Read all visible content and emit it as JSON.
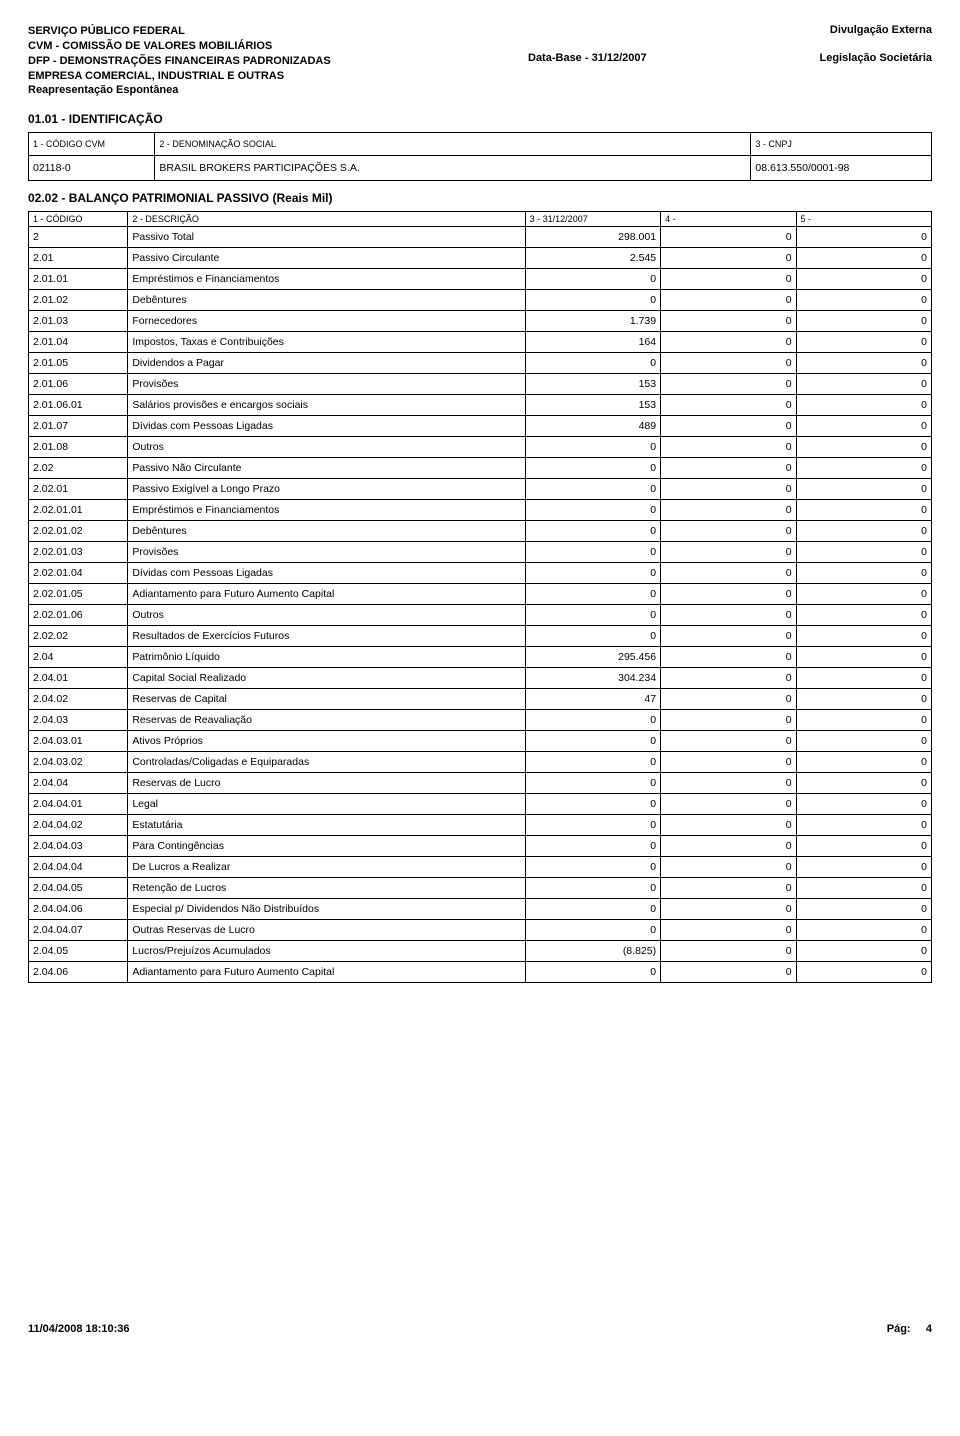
{
  "header": {
    "l1": "SERVIÇO PÚBLICO FEDERAL",
    "l2": "CVM - COMISSÃO DE VALORES MOBILIÁRIOS",
    "l3": "DFP - DEMONSTRAÇÕES FINANCEIRAS PADRONIZADAS",
    "l4": "EMPRESA COMERCIAL, INDUSTRIAL E OUTRAS",
    "l5": "Reapresentação Espontânea",
    "r1": "Divulgação Externa",
    "r2m": "Data-Base - 31/12/2007",
    "r2r": "Legislação Societária"
  },
  "ident": {
    "title": "01.01 - IDENTIFICAÇÃO",
    "labels": {
      "c1": "1 - CÓDIGO CVM",
      "c2": "2 - DENOMINAÇÃO SOCIAL",
      "c3": "3 - CNPJ"
    },
    "values": {
      "c1": "02118-0",
      "c2": "BRASIL BROKERS PARTICIPAÇÕES S.A.",
      "c3": "08.613.550/0001-98"
    }
  },
  "balance": {
    "title": "02.02 - BALANÇO PATRIMONIAL PASSIVO (Reais Mil)",
    "head": {
      "c1": "1 - CÓDIGO",
      "c2": "2 - DESCRIÇÃO",
      "c3": "3 - 31/12/2007",
      "c4": "4 -",
      "c5": "5 -"
    },
    "rows": [
      {
        "c": "2",
        "d": "Passivo Total",
        "v1": "298.001",
        "v2": "0",
        "v3": "0"
      },
      {
        "c": "2.01",
        "d": "Passivo Circulante",
        "v1": "2.545",
        "v2": "0",
        "v3": "0"
      },
      {
        "c": "2.01.01",
        "d": "Empréstimos e Financiamentos",
        "v1": "0",
        "v2": "0",
        "v3": "0"
      },
      {
        "c": "2.01.02",
        "d": "Debêntures",
        "v1": "0",
        "v2": "0",
        "v3": "0"
      },
      {
        "c": "2.01.03",
        "d": "Fornecedores",
        "v1": "1.739",
        "v2": "0",
        "v3": "0"
      },
      {
        "c": "2.01.04",
        "d": "Impostos, Taxas e Contribuições",
        "v1": "164",
        "v2": "0",
        "v3": "0"
      },
      {
        "c": "2.01.05",
        "d": "Dividendos a Pagar",
        "v1": "0",
        "v2": "0",
        "v3": "0"
      },
      {
        "c": "2.01.06",
        "d": "Provisões",
        "v1": "153",
        "v2": "0",
        "v3": "0"
      },
      {
        "c": "2.01.06.01",
        "d": "Salários provisões e encargos sociais",
        "v1": "153",
        "v2": "0",
        "v3": "0"
      },
      {
        "c": "2.01.07",
        "d": "Dívidas com Pessoas Ligadas",
        "v1": "489",
        "v2": "0",
        "v3": "0"
      },
      {
        "c": "2.01.08",
        "d": "Outros",
        "v1": "0",
        "v2": "0",
        "v3": "0"
      },
      {
        "c": "2.02",
        "d": "Passivo Não Circulante",
        "v1": "0",
        "v2": "0",
        "v3": "0"
      },
      {
        "c": "2.02.01",
        "d": "Passivo Exigível a Longo Prazo",
        "v1": "0",
        "v2": "0",
        "v3": "0"
      },
      {
        "c": "2.02.01.01",
        "d": "Empréstimos e Financiamentos",
        "v1": "0",
        "v2": "0",
        "v3": "0"
      },
      {
        "c": "2.02.01.02",
        "d": "Debêntures",
        "v1": "0",
        "v2": "0",
        "v3": "0"
      },
      {
        "c": "2.02.01.03",
        "d": "Provisões",
        "v1": "0",
        "v2": "0",
        "v3": "0"
      },
      {
        "c": "2.02.01.04",
        "d": "Dívidas com Pessoas Ligadas",
        "v1": "0",
        "v2": "0",
        "v3": "0"
      },
      {
        "c": "2.02.01.05",
        "d": "Adiantamento para Futuro Aumento Capital",
        "v1": "0",
        "v2": "0",
        "v3": "0"
      },
      {
        "c": "2.02.01.06",
        "d": "Outros",
        "v1": "0",
        "v2": "0",
        "v3": "0"
      },
      {
        "c": "2.02.02",
        "d": "Resultados de Exercícios Futuros",
        "v1": "0",
        "v2": "0",
        "v3": "0"
      },
      {
        "c": "2.04",
        "d": "Patrimônio Líquido",
        "v1": "295.456",
        "v2": "0",
        "v3": "0"
      },
      {
        "c": "2.04.01",
        "d": "Capital Social Realizado",
        "v1": "304.234",
        "v2": "0",
        "v3": "0"
      },
      {
        "c": "2.04.02",
        "d": "Reservas de Capital",
        "v1": "47",
        "v2": "0",
        "v3": "0"
      },
      {
        "c": "2.04.03",
        "d": "Reservas de Reavaliação",
        "v1": "0",
        "v2": "0",
        "v3": "0"
      },
      {
        "c": "2.04.03.01",
        "d": "Ativos Próprios",
        "v1": "0",
        "v2": "0",
        "v3": "0"
      },
      {
        "c": "2.04.03.02",
        "d": "Controladas/Coligadas e Equiparadas",
        "v1": "0",
        "v2": "0",
        "v3": "0"
      },
      {
        "c": "2.04.04",
        "d": "Reservas de Lucro",
        "v1": "0",
        "v2": "0",
        "v3": "0"
      },
      {
        "c": "2.04.04.01",
        "d": "Legal",
        "v1": "0",
        "v2": "0",
        "v3": "0"
      },
      {
        "c": "2.04.04.02",
        "d": "Estatutária",
        "v1": "0",
        "v2": "0",
        "v3": "0"
      },
      {
        "c": "2.04.04.03",
        "d": "Para Contingências",
        "v1": "0",
        "v2": "0",
        "v3": "0"
      },
      {
        "c": "2.04.04.04",
        "d": "De Lucros a Realizar",
        "v1": "0",
        "v2": "0",
        "v3": "0"
      },
      {
        "c": "2.04.04.05",
        "d": "Retenção de Lucros",
        "v1": "0",
        "v2": "0",
        "v3": "0"
      },
      {
        "c": "2.04.04.06",
        "d": "Especial p/ Dividendos Não Distribuídos",
        "v1": "0",
        "v2": "0",
        "v3": "0"
      },
      {
        "c": "2.04.04.07",
        "d": "Outras Reservas de Lucro",
        "v1": "0",
        "v2": "0",
        "v3": "0"
      },
      {
        "c": "2.04.05",
        "d": "Lucros/Prejuízos Acumulados",
        "v1": "(8.825)",
        "v2": "0",
        "v3": "0"
      },
      {
        "c": "2.04.06",
        "d": "Adiantamento para Futuro Aumento Capital",
        "v1": "0",
        "v2": "0",
        "v3": "0"
      }
    ]
  },
  "footer": {
    "ts": "11/04/2008 18:10:36",
    "pg_label": "Pág:",
    "pg_num": "4"
  },
  "style": {
    "col_widths_ident": [
      "14%",
      "66%",
      "20%"
    ],
    "col_widths_balance": [
      "11%",
      "44%",
      "15%",
      "15%",
      "15%"
    ]
  }
}
